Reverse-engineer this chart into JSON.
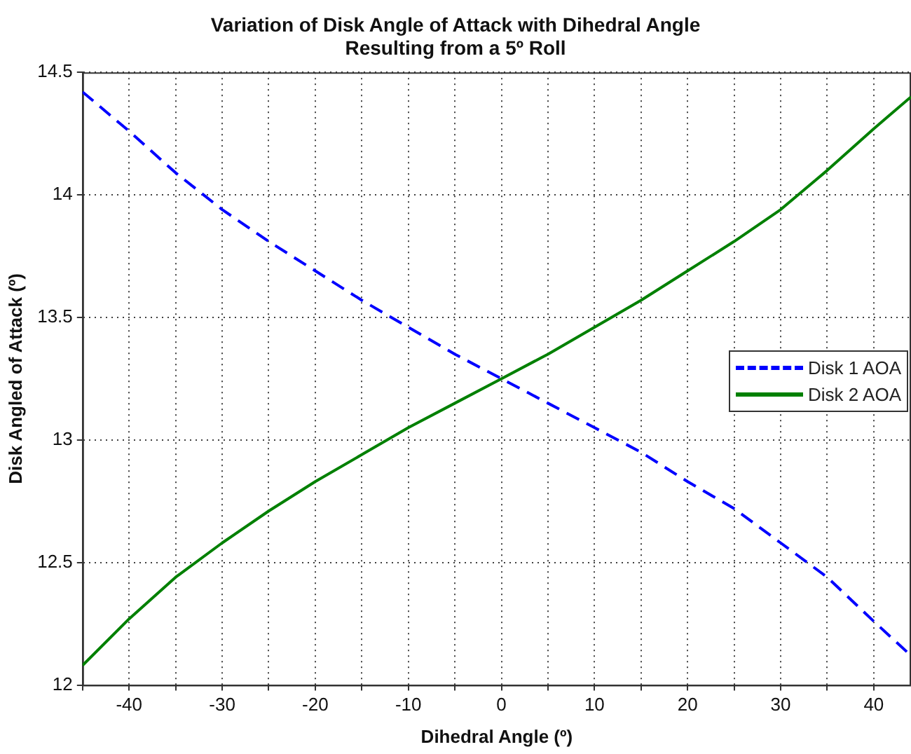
{
  "chart_data": {
    "type": "line",
    "title": "Variation of Disk Angle of Attack with Dihedral Angle\nResulting from a 5º Roll",
    "xlabel": "Dihedral Angle (º)",
    "ylabel": "Disk Angled of Attack (º)",
    "x": [
      -45,
      -40,
      -35,
      -30,
      -25,
      -20,
      -15,
      -10,
      -5,
      0,
      5,
      10,
      15,
      20,
      25,
      30,
      35,
      40,
      44
    ],
    "series": [
      {
        "name": "Disk 1 AOA",
        "color": "#0000ff",
        "line_style": "dashed",
        "values": [
          14.42,
          14.26,
          14.09,
          13.94,
          13.81,
          13.69,
          13.57,
          13.46,
          13.35,
          13.25,
          13.15,
          13.05,
          12.95,
          12.83,
          12.72,
          12.58,
          12.44,
          12.26,
          12.12
        ]
      },
      {
        "name": "Disk 2 AOA",
        "color": "#008000",
        "line_style": "solid",
        "values": [
          12.08,
          12.27,
          12.44,
          12.58,
          12.71,
          12.83,
          12.94,
          13.05,
          13.15,
          13.25,
          13.35,
          13.46,
          13.57,
          13.69,
          13.81,
          13.94,
          14.1,
          14.27,
          14.4
        ]
      }
    ],
    "xlim": [
      -45,
      44
    ],
    "xticks": [
      {
        "value": -45,
        "label": null
      },
      -40,
      {
        "value": -35,
        "label": null
      },
      -30,
      {
        "value": -25,
        "label": null
      },
      -20,
      {
        "value": -15,
        "label": null
      },
      -10,
      {
        "value": -5,
        "label": null
      },
      0,
      {
        "value": 5,
        "label": null
      },
      10,
      {
        "value": 15,
        "label": null
      },
      20,
      {
        "value": 25,
        "label": null
      },
      30,
      {
        "value": 35,
        "label": null
      },
      40
    ],
    "ylim": [
      12,
      14.5
    ],
    "yticks": [
      12,
      12.5,
      13,
      13.5,
      14,
      14.5
    ],
    "grid": true,
    "legend": "right",
    "marker": "none"
  }
}
